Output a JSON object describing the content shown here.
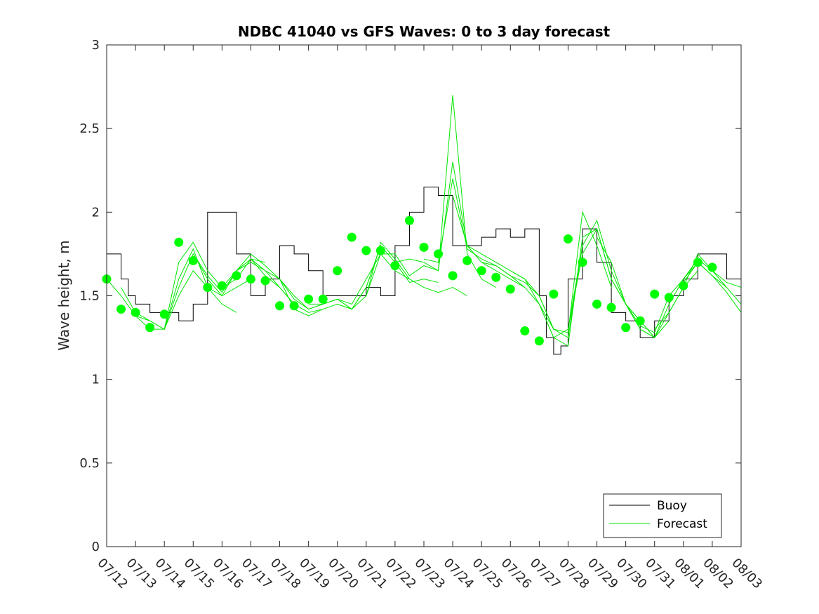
{
  "chart_data": {
    "type": "line",
    "title": "NDBC 41040 vs GFS Waves: 0 to 3 day forecast",
    "xlabel": "",
    "ylabel": "Wave height, m",
    "xlim_days_from_07_12": [
      0,
      22
    ],
    "ylim": [
      0,
      3
    ],
    "yticks": [
      "0",
      "0.5",
      "1",
      "1.5",
      "2",
      "2.5",
      "3"
    ],
    "xticks": [
      "07/12",
      "07/13",
      "07/14",
      "07/15",
      "07/16",
      "07/17",
      "07/18",
      "07/19",
      "07/20",
      "07/21",
      "07/22",
      "07/23",
      "07/24",
      "07/25",
      "07/26",
      "07/27",
      "07/28",
      "07/29",
      "07/30",
      "07/31",
      "08/01",
      "08/02",
      "08/03"
    ],
    "grid": false,
    "legend": {
      "position": "bottom-right",
      "entries": [
        "Buoy",
        "Forecast"
      ]
    },
    "colors": {
      "buoy": "#000000",
      "forecast": "#00e600",
      "forecast_dots": "#00ff00"
    },
    "buoy": {
      "name": "Buoy",
      "x": [
        0,
        0.5,
        0.75,
        1,
        1.5,
        2,
        2.5,
        3,
        3.5,
        4,
        4.5,
        5,
        5.5,
        6,
        6.5,
        7,
        7.5,
        8,
        8.5,
        9,
        9.5,
        10,
        10.5,
        11,
        11.5,
        12,
        12.5,
        13,
        13.5,
        14,
        14.5,
        15,
        15.25,
        15.5,
        15.75,
        16,
        16.5,
        17,
        17.5,
        18,
        18.5,
        19,
        19.5,
        20,
        20.5,
        21,
        21.5,
        22
      ],
      "y": [
        1.75,
        1.6,
        1.5,
        1.45,
        1.4,
        1.4,
        1.35,
        1.45,
        2.0,
        2.0,
        1.75,
        1.5,
        1.6,
        1.8,
        1.75,
        1.65,
        1.5,
        1.5,
        1.5,
        1.55,
        1.5,
        1.8,
        2.0,
        2.15,
        2.1,
        1.8,
        1.8,
        1.85,
        1.9,
        1.85,
        1.9,
        1.5,
        1.25,
        1.15,
        1.2,
        1.6,
        1.9,
        1.7,
        1.4,
        1.35,
        1.25,
        1.35,
        1.5,
        1.6,
        1.75,
        1.75,
        1.6,
        1.6
      ]
    },
    "forecast_series": [
      {
        "x": [
          0,
          0.5,
          1,
          1.5,
          2,
          2.5,
          3,
          3.5,
          4,
          4.5
        ],
        "y": [
          1.6,
          1.5,
          1.38,
          1.3,
          1.3,
          1.5,
          1.65,
          1.55,
          1.45,
          1.4
        ]
      },
      {
        "x": [
          0.5,
          1,
          1.5,
          2,
          2.5,
          3,
          3.5,
          4,
          4.5,
          5
        ],
        "y": [
          1.55,
          1.4,
          1.35,
          1.3,
          1.55,
          1.75,
          1.6,
          1.5,
          1.55,
          1.6
        ]
      },
      {
        "x": [
          1,
          1.5,
          2,
          2.5,
          3,
          3.5,
          4,
          4.5,
          5,
          5.5
        ],
        "y": [
          1.38,
          1.35,
          1.3,
          1.7,
          1.82,
          1.65,
          1.55,
          1.6,
          1.72,
          1.7
        ]
      },
      {
        "x": [
          2,
          2.5,
          3,
          3.5,
          4,
          4.5,
          5,
          5.5,
          6,
          6.5
        ],
        "y": [
          1.3,
          1.6,
          1.78,
          1.55,
          1.5,
          1.65,
          1.7,
          1.65,
          1.55,
          1.45
        ]
      },
      {
        "x": [
          3,
          3.5,
          4,
          4.5,
          5,
          5.5,
          6,
          6.5,
          7,
          7.5
        ],
        "y": [
          1.75,
          1.62,
          1.52,
          1.65,
          1.75,
          1.68,
          1.6,
          1.42,
          1.38,
          1.42
        ]
      },
      {
        "x": [
          4,
          4.5,
          5,
          5.5,
          6,
          6.5,
          7,
          7.5,
          8,
          8.5
        ],
        "y": [
          1.55,
          1.65,
          1.72,
          1.62,
          1.55,
          1.45,
          1.4,
          1.42,
          1.45,
          1.42
        ]
      },
      {
        "x": [
          5,
          5.5,
          6,
          6.5,
          7,
          7.5,
          8,
          8.5,
          9,
          9.5
        ],
        "y": [
          1.72,
          1.65,
          1.6,
          1.48,
          1.42,
          1.45,
          1.48,
          1.42,
          1.55,
          1.8
        ]
      },
      {
        "x": [
          6,
          6.5,
          7,
          7.5,
          8,
          8.5,
          9,
          9.5,
          10,
          10.5
        ],
        "y": [
          1.6,
          1.5,
          1.42,
          1.45,
          1.48,
          1.45,
          1.6,
          1.75,
          1.65,
          1.6
        ]
      },
      {
        "x": [
          7,
          7.5,
          8,
          8.5,
          9,
          9.5,
          10,
          10.5,
          11,
          11.5
        ],
        "y": [
          1.45,
          1.45,
          1.48,
          1.42,
          1.55,
          1.8,
          1.7,
          1.58,
          1.6,
          1.58
        ]
      },
      {
        "x": [
          8,
          8.5,
          9,
          9.5,
          10,
          10.5,
          11,
          11.5,
          12,
          12.5
        ],
        "y": [
          1.45,
          1.42,
          1.5,
          1.82,
          1.72,
          1.6,
          1.55,
          1.52,
          1.55,
          1.5
        ]
      },
      {
        "x": [
          9,
          9.5,
          10,
          10.5,
          11,
          11.5,
          12,
          12.5,
          13,
          13.5
        ],
        "y": [
          1.5,
          1.75,
          1.75,
          1.62,
          1.68,
          1.65,
          2.7,
          1.75,
          1.6,
          1.55
        ]
      },
      {
        "x": [
          10,
          10.5,
          11,
          11.5,
          12,
          12.5,
          13,
          13.5,
          14,
          14.5
        ],
        "y": [
          1.7,
          1.72,
          1.7,
          1.65,
          2.3,
          1.8,
          1.7,
          1.65,
          1.6,
          1.55
        ]
      },
      {
        "x": [
          11,
          11.5,
          12,
          12.5,
          13,
          13.5,
          14,
          14.5,
          15,
          15.5
        ],
        "y": [
          1.72,
          1.7,
          2.2,
          1.78,
          1.72,
          1.68,
          1.62,
          1.55,
          1.45,
          1.3
        ]
      },
      {
        "x": [
          12,
          12.5,
          13,
          13.5,
          14,
          14.5,
          15,
          15.5,
          16,
          16.5
        ],
        "y": [
          2.1,
          1.8,
          1.75,
          1.7,
          1.65,
          1.6,
          1.5,
          1.3,
          1.25,
          1.8
        ]
      },
      {
        "x": [
          13,
          13.5,
          14,
          14.5,
          15,
          15.5,
          16,
          16.5,
          17,
          17.5
        ],
        "y": [
          1.7,
          1.68,
          1.62,
          1.58,
          1.5,
          1.3,
          1.28,
          2.0,
          1.8,
          1.55
        ]
      },
      {
        "x": [
          14,
          14.5,
          15,
          15.5,
          16,
          16.5,
          17,
          17.5,
          18,
          18.5
        ],
        "y": [
          1.65,
          1.6,
          1.45,
          1.25,
          1.2,
          1.85,
          1.9,
          1.6,
          1.45,
          1.35
        ]
      },
      {
        "x": [
          15,
          15.5,
          16,
          16.5,
          17,
          17.5,
          18,
          18.5,
          19,
          19.5
        ],
        "y": [
          1.45,
          1.25,
          1.3,
          1.8,
          1.95,
          1.65,
          1.45,
          1.3,
          1.25,
          1.35
        ]
      },
      {
        "x": [
          16,
          16.5,
          17,
          17.5,
          18,
          18.5,
          19,
          19.5,
          20,
          20.5
        ],
        "y": [
          1.3,
          1.75,
          1.9,
          1.6,
          1.45,
          1.3,
          1.25,
          1.4,
          1.55,
          1.65
        ]
      },
      {
        "x": [
          17,
          17.5,
          18,
          18.5,
          19,
          19.5,
          20,
          20.5,
          21,
          21.5
        ],
        "y": [
          1.85,
          1.7,
          1.45,
          1.32,
          1.28,
          1.5,
          1.6,
          1.7,
          1.62,
          1.55
        ]
      },
      {
        "x": [
          18,
          18.5,
          19,
          19.5,
          20,
          20.5,
          21,
          21.5,
          22
        ],
        "y": [
          1.45,
          1.35,
          1.25,
          1.45,
          1.6,
          1.72,
          1.65,
          1.58,
          1.55
        ]
      },
      {
        "x": [
          19,
          19.5,
          20,
          20.5,
          21,
          21.5,
          22
        ],
        "y": [
          1.3,
          1.4,
          1.55,
          1.75,
          1.65,
          1.55,
          1.45
        ]
      },
      {
        "x": [
          20,
          20.5,
          21,
          21.5,
          22
        ],
        "y": [
          1.58,
          1.7,
          1.62,
          1.52,
          1.4
        ]
      }
    ],
    "forecast_points": {
      "x": [
        0,
        0.5,
        1,
        1.5,
        2,
        2.5,
        3,
        3.5,
        4,
        4.5,
        5,
        5.5,
        6,
        6.5,
        7,
        7.5,
        8,
        8.5,
        9,
        9.5,
        10,
        10.5,
        11,
        11.5,
        12,
        12.5,
        13,
        13.5,
        14,
        14.5,
        15,
        15.5,
        16,
        16.5,
        17,
        17.5,
        18,
        18.5,
        19,
        19.5,
        20,
        20.5,
        21
      ],
      "y": [
        1.6,
        1.42,
        1.4,
        1.31,
        1.39,
        1.82,
        1.71,
        1.55,
        1.56,
        1.62,
        1.6,
        1.59,
        1.44,
        1.44,
        1.48,
        1.48,
        1.65,
        1.85,
        1.77,
        1.77,
        1.68,
        1.95,
        1.79,
        1.75,
        1.62,
        1.71,
        1.65,
        1.61,
        1.54,
        1.29,
        1.23,
        1.51,
        1.84,
        1.7,
        1.45,
        1.43,
        1.31,
        1.35,
        1.51,
        1.49,
        1.56,
        1.7,
        1.67
      ]
    }
  }
}
